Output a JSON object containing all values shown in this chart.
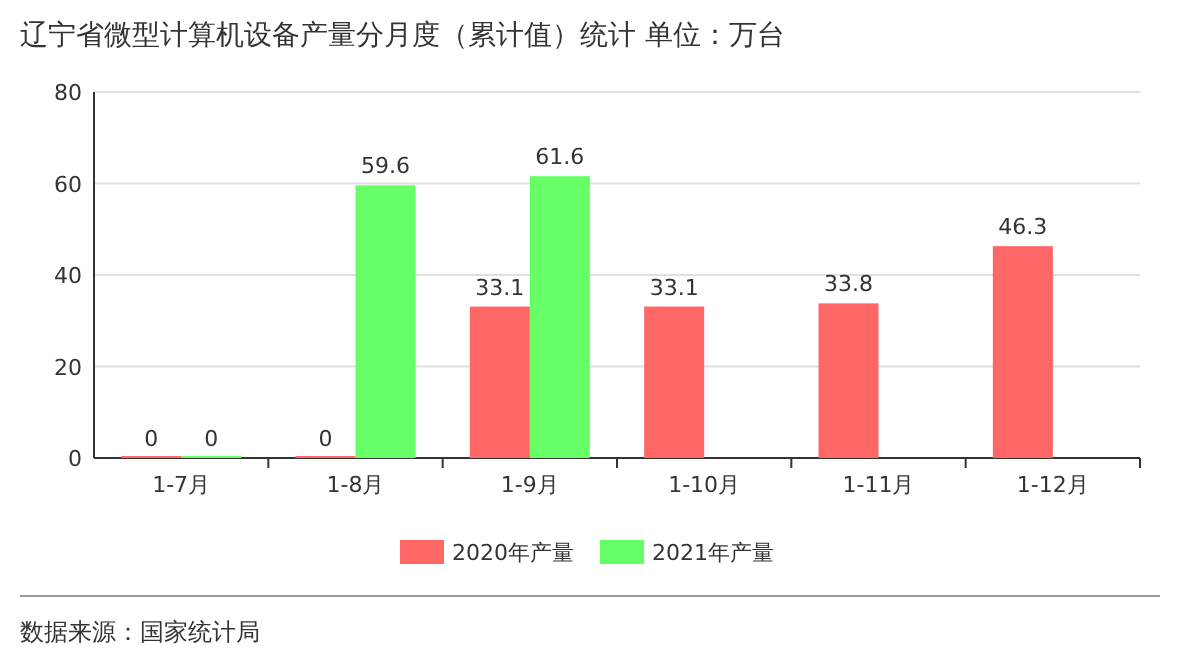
{
  "chart_data": {
    "type": "bar",
    "title": "辽宁省微型计算机设备产量分月度（累计值）统计 单位：万台",
    "categories": [
      "1-7月",
      "1-8月",
      "1-9月",
      "1-10月",
      "1-11月",
      "1-12月"
    ],
    "series": [
      {
        "name": "2020年产量",
        "color": "#ff6666",
        "values": [
          0,
          0,
          33.1,
          33.1,
          33.8,
          46.3
        ]
      },
      {
        "name": "2021年产量",
        "color": "#66ff66",
        "values": [
          0,
          59.6,
          61.6,
          null,
          null,
          null
        ]
      }
    ],
    "ylim": [
      0,
      80
    ],
    "yticks": [
      0,
      20,
      40,
      60,
      80
    ],
    "grid": "y",
    "legend": "bottom",
    "data_labels": true,
    "annotations": [
      "数据来源：国家统计局"
    ]
  }
}
